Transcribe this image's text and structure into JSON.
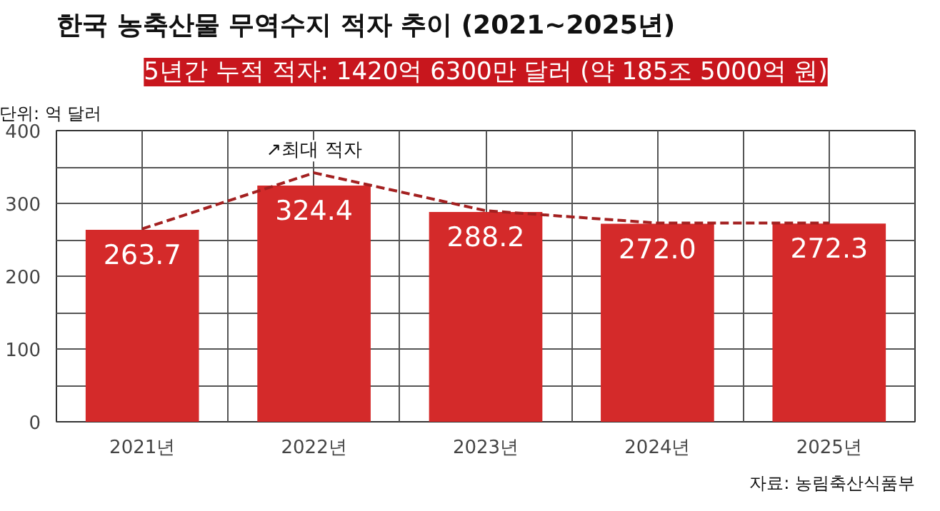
{
  "chart_data": {
    "type": "bar",
    "title": "한국 농축산물 무역수지 적자 추이 (2021~2025년)",
    "subtitle": "5년간 누적 적자: 1420억 6300만 달러 (약 185조 5000억 원)",
    "ylabel": "단위: 억 달러",
    "categories": [
      "2021년",
      "2022년",
      "2023년",
      "2024년",
      "2025년"
    ],
    "series": [
      {
        "color": "#d42a2a",
        "values": [
          263.7,
          324.4,
          288.2,
          272.0,
          272.3
        ],
        "value_labels": [
          "263.7",
          "324.4",
          "288.2",
          "272.0",
          "272.3"
        ]
      },
      {
        "type": "line",
        "color": "#a32020",
        "line_style": "dashed",
        "marker": "none",
        "values": [
          265,
          342,
          290,
          273,
          273
        ]
      }
    ],
    "ylim": [
      0,
      400
    ],
    "yticks": [
      0,
      {
        "value": 50,
        "label": null
      },
      100,
      {
        "value": 150,
        "label": null
      },
      200,
      {
        "value": 250,
        "label": null
      },
      300,
      {
        "value": 350,
        "label": null
      },
      400
    ],
    "grid": true,
    "annotations": [
      {
        "text": "↗최대 적자",
        "x": "2022년",
        "y": 342
      },
      "자료: 농림축산식품부"
    ]
  }
}
